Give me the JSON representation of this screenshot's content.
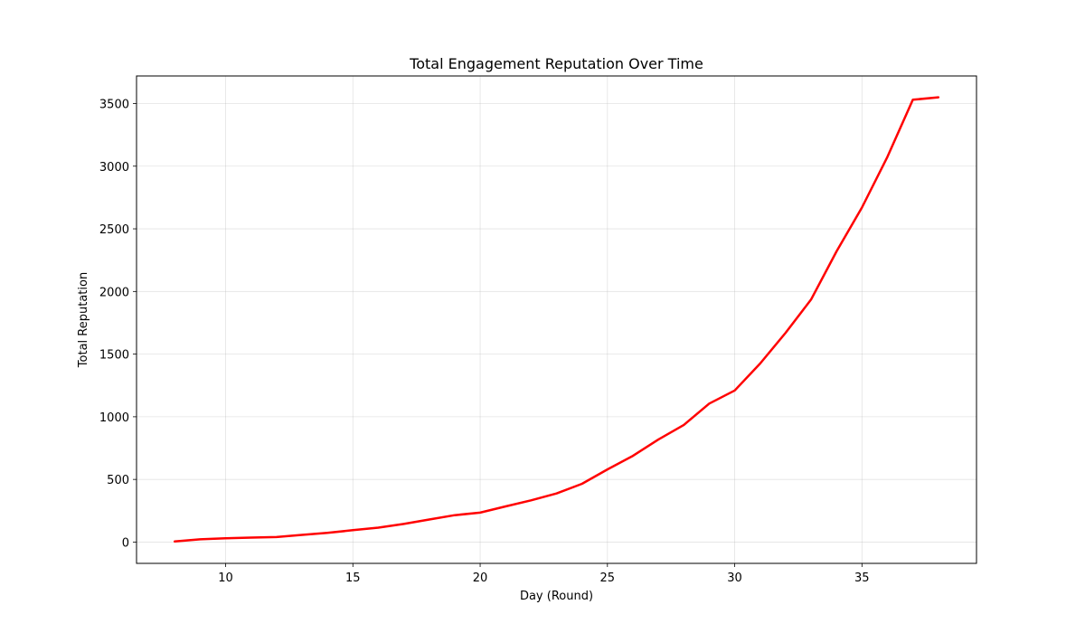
{
  "chart_data": {
    "type": "line",
    "title": "Total Engagement Reputation Over Time",
    "xlabel": "Day (Round)",
    "ylabel": "Total Reputation",
    "xlim": [
      6.5,
      39.5
    ],
    "ylim": [
      -170,
      3720
    ],
    "xticks": [
      10,
      15,
      20,
      25,
      30,
      35
    ],
    "yticks": [
      0,
      500,
      1000,
      1500,
      2000,
      2500,
      3000,
      3500
    ],
    "grid": true,
    "series": [
      {
        "color": "#ff0000",
        "x": [
          8,
          9,
          10,
          11,
          12,
          13,
          14,
          15,
          16,
          17,
          18,
          19,
          20,
          21,
          22,
          23,
          24,
          25,
          26,
          27,
          28,
          29,
          30,
          31,
          32,
          33,
          34,
          35,
          36,
          37,
          38
        ],
        "y": [
          5,
          22,
          30,
          36,
          40,
          57,
          73,
          95,
          115,
          145,
          180,
          215,
          235,
          285,
          333,
          388,
          465,
          580,
          688,
          818,
          935,
          1105,
          1210,
          1425,
          1670,
          1935,
          2320,
          2670,
          3075,
          3530,
          3550
        ]
      }
    ]
  }
}
